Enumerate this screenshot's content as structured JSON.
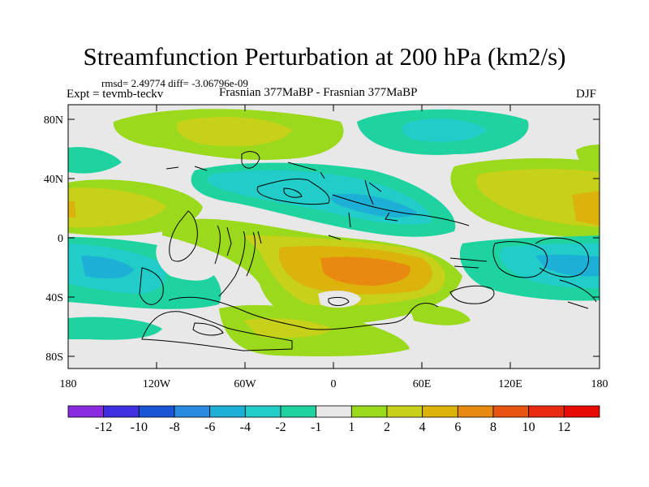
{
  "header": {
    "title": "Streamfunction Perturbation at 200 hPa (km2/s)",
    "stats": "rmsd= 2.49774 diff= -3.06796e-09",
    "experiment": "Expt = tevmb-teckv",
    "subtitle": "Frasnian 377MaBP - Frasnian 377MaBP",
    "season": "DJF"
  },
  "axes": {
    "y_ticks": [
      "80N",
      "40N",
      "0",
      "40S",
      "80S"
    ],
    "x_ticks": [
      "180",
      "120W",
      "60W",
      "0",
      "60E",
      "120E",
      "180"
    ]
  },
  "colorbar": {
    "labels": [
      "-12",
      "-10",
      "-8",
      "-6",
      "-4",
      "-2",
      "-1",
      "1",
      "2",
      "4",
      "6",
      "8",
      "10",
      "12"
    ],
    "colors": [
      "#8a2be2",
      "#3f2fe0",
      "#1a55d6",
      "#2a8ae0",
      "#1cb0d6",
      "#22ccc8",
      "#1fd3a0",
      "#e8e8e8",
      "#9ad91c",
      "#c7d11a",
      "#dcb30a",
      "#e88a10",
      "#e85510",
      "#e82a10",
      "#e80a05"
    ]
  },
  "map": {
    "field": "streamfunction perturbation",
    "level": "200 hPa",
    "units": "km2/s",
    "projection": "cylindrical equidistant",
    "colors": {
      "background": "#e8e8e8",
      "pos_1_2": "#9ad91c",
      "pos_2_4": "#c7d11a",
      "pos_4_6": "#dcb30a",
      "pos_6_8": "#e88a10",
      "neg_1_2": "#1fd3a0",
      "neg_2_4": "#22ccc8",
      "neg_4_6": "#1cb0d6",
      "coast": "#000000"
    }
  }
}
